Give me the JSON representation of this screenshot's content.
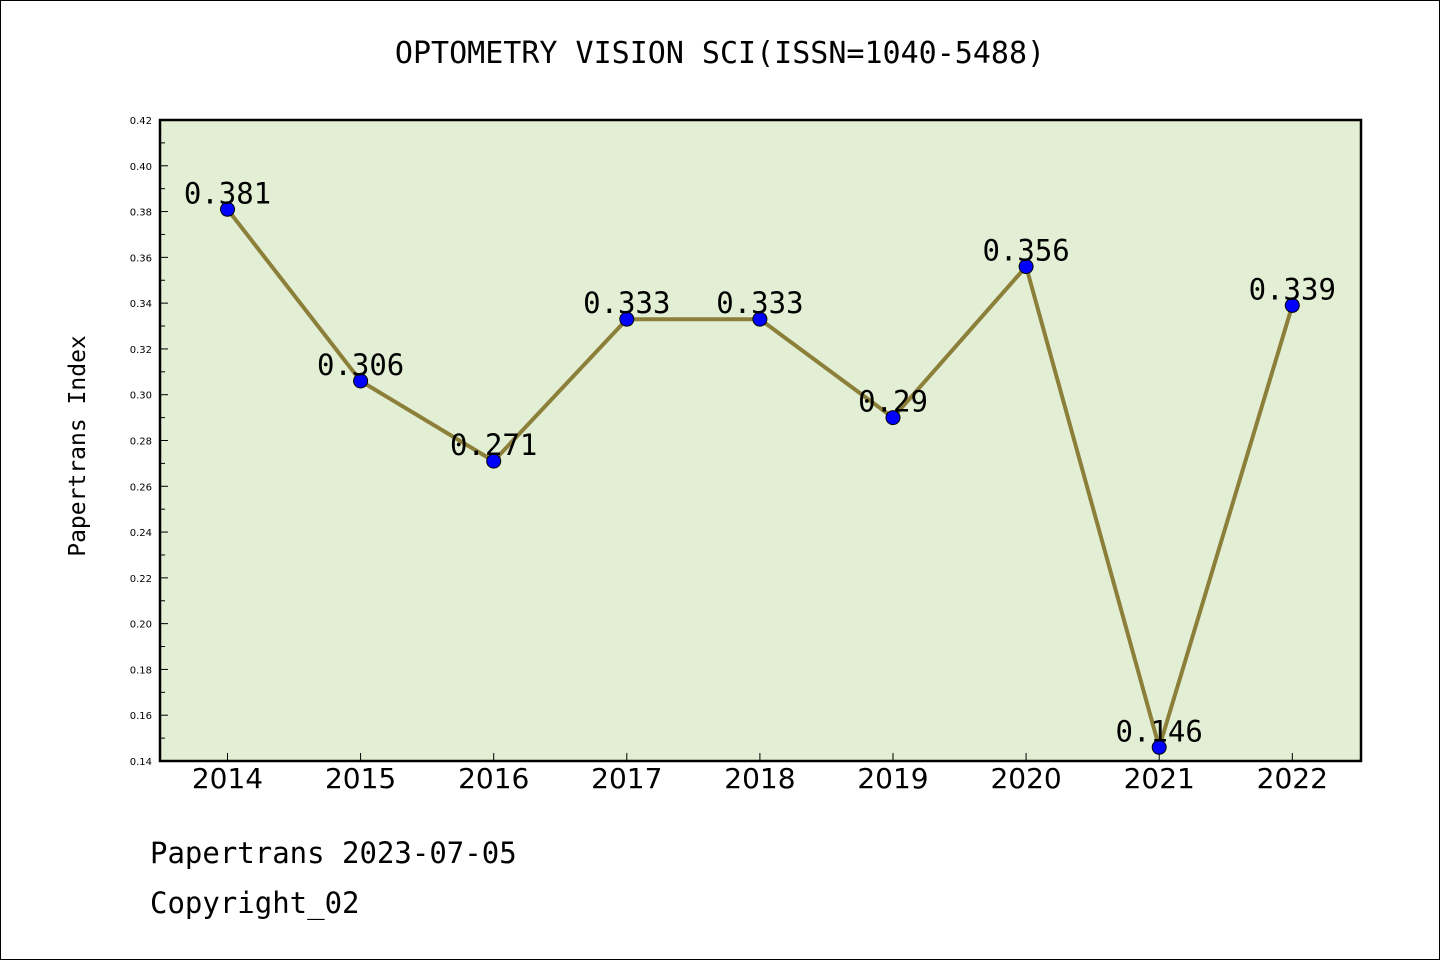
{
  "chart_data": {
    "type": "line",
    "title": "OPTOMETRY VISION SCI(ISSN=1040-5488)",
    "ylabel": "Papertrans Index",
    "xlabel": "",
    "categories": [
      "2014",
      "2015",
      "2016",
      "2017",
      "2018",
      "2019",
      "2020",
      "2021",
      "2022"
    ],
    "values": [
      0.381,
      0.306,
      0.271,
      0.333,
      0.333,
      0.29,
      0.356,
      0.146,
      0.339
    ],
    "data_labels": [
      "0.381",
      "0.306",
      "0.271",
      "0.333",
      "0.333",
      "0.29",
      "0.356",
      "0.146",
      "0.339"
    ],
    "ylim": [
      0.14,
      0.42
    ],
    "yticks": [
      "0.14",
      "0.16",
      "0.18",
      "0.20",
      "0.22",
      "0.24",
      "0.26",
      "0.28",
      "0.30",
      "0.32",
      "0.34",
      "0.36",
      "0.38",
      "0.40",
      "0.42"
    ],
    "grid": false,
    "colors": {
      "plot_background": "#e2efd5",
      "line": "#8c7f3a",
      "marker": "#0000ff"
    }
  },
  "footer": {
    "line1": "Papertrans 2023-07-05",
    "line2": "Copyright_02"
  }
}
